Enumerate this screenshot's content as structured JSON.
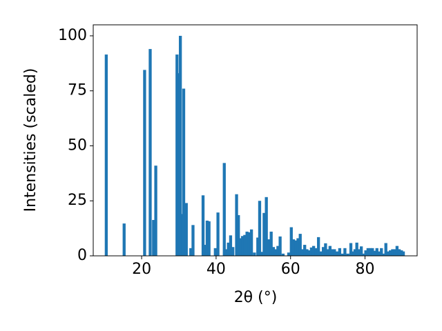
{
  "chart_data": {
    "type": "bar",
    "xlabel": "2θ (°)",
    "ylabel": "Intensities (scaled)",
    "color": "#1f77b4",
    "x": [
      10.5,
      15.3,
      20.8,
      22.3,
      23.2,
      23.8,
      29.5,
      29.9,
      30.4,
      31.0,
      31.3,
      32.0,
      33.2,
      33.8,
      36.5,
      37.1,
      37.6,
      38.1,
      39.8,
      40.5,
      42.2,
      42.8,
      43.3,
      43.9,
      44.5,
      45.5,
      46.0,
      46.6,
      47.1,
      47.7,
      48.3,
      48.9,
      49.5,
      50.3,
      51.2,
      51.7,
      52.3,
      52.9,
      53.5,
      54.1,
      54.8,
      55.4,
      56.0,
      56.6,
      57.2,
      58.0,
      59.5,
      60.2,
      60.8,
      61.4,
      62.0,
      62.6,
      63.2,
      63.8,
      64.4,
      65.0,
      65.6,
      66.2,
      66.8,
      67.5,
      68.2,
      68.8,
      69.4,
      70.0,
      70.6,
      71.2,
      71.8,
      72.5,
      73.2,
      74.0,
      74.6,
      75.4,
      76.2,
      76.8,
      77.3,
      77.8,
      78.4,
      79.0,
      79.6,
      80.2,
      80.8,
      81.4,
      82.0,
      82.6,
      83.2,
      83.8,
      84.4,
      85.0,
      85.6,
      86.2,
      86.8,
      87.4,
      88.0,
      88.6,
      89.2,
      89.8,
      90.3
    ],
    "values": [
      91.5,
      14.7,
      84.5,
      94,
      16.3,
      41,
      91.5,
      83,
      100,
      19,
      76,
      24,
      3.5,
      14,
      27.5,
      5,
      16,
      15.7,
      3.5,
      19.7,
      42.2,
      3,
      6,
      9.3,
      4,
      28,
      18.5,
      8,
      9,
      9.5,
      11,
      10.7,
      12,
      1.5,
      8.3,
      25,
      1.8,
      19.5,
      26.7,
      7.5,
      11,
      4,
      3,
      4.5,
      8.8,
      1,
      1.5,
      13,
      7.5,
      7,
      8,
      10,
      3,
      5,
      3,
      2.5,
      3.8,
      4.5,
      3.5,
      8.5,
      2,
      4,
      5.7,
      3,
      4.5,
      3,
      3,
      2,
      3.5,
      1,
      3.5,
      1,
      5.8,
      2,
      3,
      6,
      3,
      4.3,
      1,
      2.5,
      3.5,
      3.5,
      3.5,
      2.3,
      3.5,
      2,
      3.5,
      1,
      5.8,
      2,
      2.5,
      3,
      3,
      4.5,
      3,
      2.5,
      2
    ],
    "xlim": [
      7,
      94
    ],
    "ylim": [
      0,
      105
    ],
    "xticks": [
      20,
      40,
      60,
      80
    ],
    "yticks": [
      0,
      25,
      50,
      75,
      100
    ]
  }
}
